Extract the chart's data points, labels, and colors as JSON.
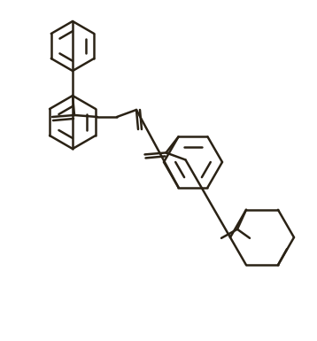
{
  "bg_color": "#ffffff",
  "line_color": "#2a2215",
  "line_width": 1.8,
  "fig_width": 3.58,
  "fig_height": 3.85,
  "dpi": 100
}
